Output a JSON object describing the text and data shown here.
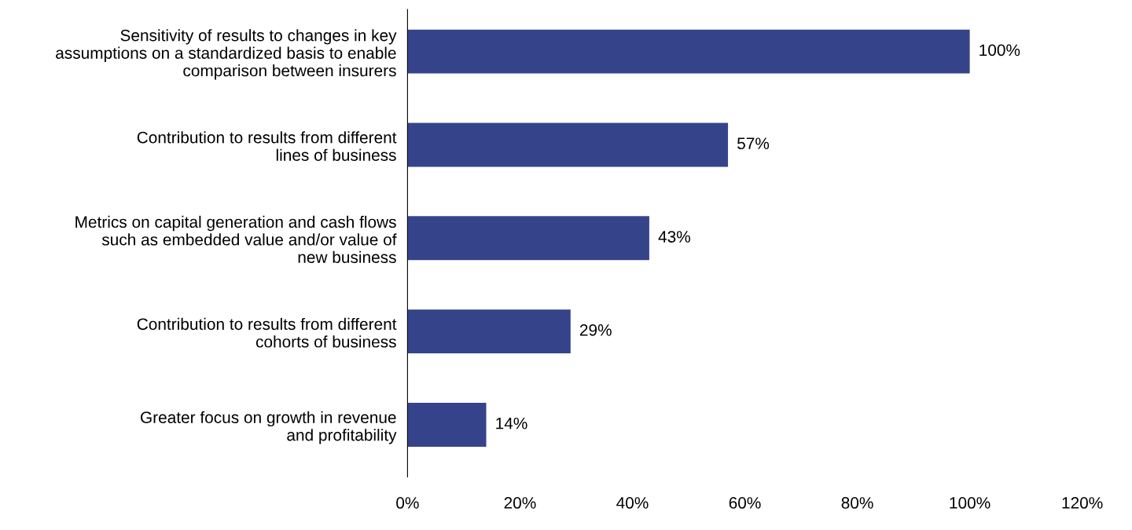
{
  "chart_data": {
    "type": "bar",
    "orientation": "horizontal",
    "categories": [
      "Sensitivity of results to changes in key\nassumptions on a standardized basis to enable\ncomparison between insurers",
      "Contribution to results from different\nlines of business",
      "Metrics on capital generation and cash flows\nsuch as embedded value and/or value of\nnew business",
      "Contribution to results from different\ncohorts of business",
      "Greater focus on growth in revenue\nand profitability"
    ],
    "values": [
      100,
      57,
      43,
      29,
      14
    ],
    "value_labels": [
      "100%",
      "57%",
      "43%",
      "29%",
      "14%"
    ],
    "color": "#35448a",
    "xlim": [
      0,
      120
    ],
    "xticks": [
      {
        "value": 0,
        "label": "0%"
      },
      {
        "value": 20,
        "label": "20%"
      },
      {
        "value": 40,
        "label": "40%"
      },
      {
        "value": 60,
        "label": "60%"
      },
      {
        "value": 80,
        "label": "80%"
      },
      {
        "value": 100,
        "label": "100%"
      },
      {
        "value": 120,
        "label": "120%"
      }
    ],
    "grid": false,
    "legend": false
  }
}
